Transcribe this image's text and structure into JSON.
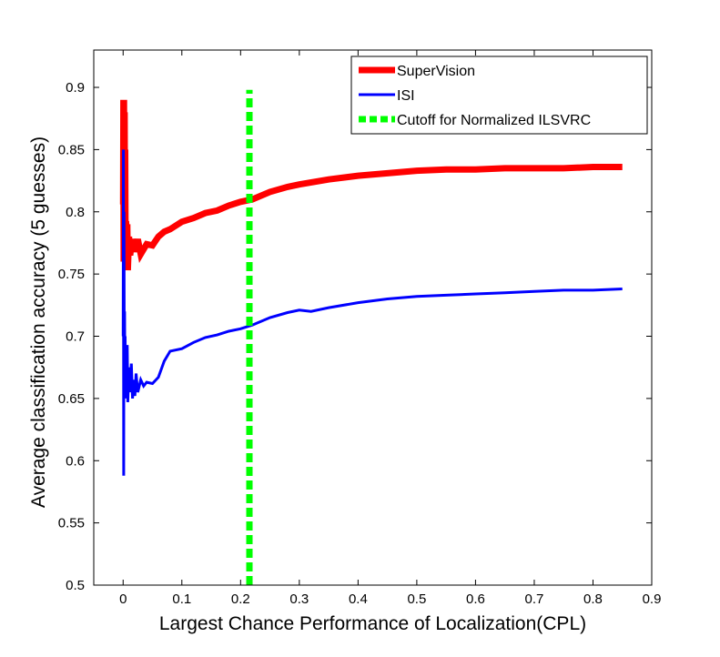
{
  "chart_data": {
    "type": "line",
    "title": "",
    "xlabel": "Largest Chance Performance of Localization(CPL)",
    "ylabel": "Average classification accuracy (5 guesses)",
    "xlim": [
      -0.05,
      0.9
    ],
    "ylim": [
      0.5,
      0.93
    ],
    "x_ticks": [
      "0",
      "0.1",
      "0.2",
      "0.3",
      "0.4",
      "0.5",
      "0.6",
      "0.7",
      "0.8",
      "0.9"
    ],
    "y_ticks": [
      "0.5",
      "0.55",
      "0.6",
      "0.65",
      "0.7",
      "0.75",
      "0.8",
      "0.85",
      "0.9"
    ],
    "grid": false,
    "legend_position": "top-right",
    "series": [
      {
        "name": "SuperVision",
        "color": "#ff0000",
        "style": "solid",
        "x": [
          0,
          0.0005,
          0.001,
          0.0015,
          0.002,
          0.0025,
          0.003,
          0.0035,
          0.004,
          0.005,
          0.006,
          0.007,
          0.008,
          0.01,
          0.012,
          0.015,
          0.02,
          0.025,
          0.03,
          0.04,
          0.05,
          0.06,
          0.07,
          0.08,
          0.1,
          0.12,
          0.14,
          0.16,
          0.18,
          0.2,
          0.22,
          0.25,
          0.28,
          0.3,
          0.35,
          0.4,
          0.45,
          0.5,
          0.55,
          0.6,
          0.65,
          0.7,
          0.75,
          0.8,
          0.85
        ],
        "values": [
          0.806,
          0.89,
          0.76,
          0.89,
          0.77,
          0.88,
          0.78,
          0.85,
          0.79,
          0.79,
          0.765,
          0.79,
          0.753,
          0.78,
          0.765,
          0.778,
          0.768,
          0.778,
          0.766,
          0.774,
          0.773,
          0.78,
          0.784,
          0.786,
          0.792,
          0.795,
          0.799,
          0.801,
          0.805,
          0.808,
          0.81,
          0.816,
          0.82,
          0.822,
          0.826,
          0.829,
          0.831,
          0.833,
          0.834,
          0.834,
          0.835,
          0.835,
          0.835,
          0.836,
          0.836
        ]
      },
      {
        "name": "ISI",
        "color": "#0000ff",
        "style": "solid",
        "x": [
          0,
          0.0005,
          0.001,
          0.0015,
          0.002,
          0.0025,
          0.003,
          0.0035,
          0.004,
          0.005,
          0.006,
          0.007,
          0.008,
          0.01,
          0.012,
          0.014,
          0.016,
          0.018,
          0.02,
          0.022,
          0.025,
          0.03,
          0.035,
          0.04,
          0.05,
          0.06,
          0.07,
          0.08,
          0.1,
          0.12,
          0.14,
          0.16,
          0.18,
          0.2,
          0.22,
          0.25,
          0.28,
          0.3,
          0.32,
          0.35,
          0.4,
          0.45,
          0.5,
          0.55,
          0.6,
          0.65,
          0.7,
          0.75,
          0.8,
          0.85
        ],
        "values": [
          0.7,
          0.85,
          0.588,
          0.8,
          0.65,
          0.72,
          0.66,
          0.7,
          0.65,
          0.69,
          0.66,
          0.693,
          0.647,
          0.675,
          0.655,
          0.678,
          0.65,
          0.665,
          0.652,
          0.67,
          0.655,
          0.665,
          0.66,
          0.663,
          0.662,
          0.667,
          0.68,
          0.688,
          0.69,
          0.695,
          0.699,
          0.701,
          0.704,
          0.706,
          0.709,
          0.715,
          0.719,
          0.721,
          0.72,
          0.723,
          0.727,
          0.73,
          0.732,
          0.733,
          0.734,
          0.735,
          0.736,
          0.737,
          0.737,
          0.738
        ]
      },
      {
        "name": "Cutoff for Normalized ILSVRC",
        "color": "#00ff00",
        "style": "dashed",
        "x": [
          0.215,
          0.215
        ],
        "values": [
          0.5,
          0.898
        ]
      }
    ]
  }
}
